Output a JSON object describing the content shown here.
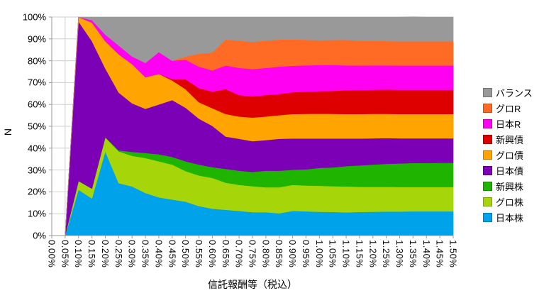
{
  "chart_data": {
    "type": "area",
    "subtype": "stacked-100",
    "title": "",
    "xlabel": "信託報酬等（税込）",
    "ylabel": "N",
    "ylim": [
      0,
      100
    ],
    "grid": true,
    "legend_position": "right",
    "x_tick_labels": [
      "0.00%",
      "0.05%",
      "0.10%",
      "0.15%",
      "0.20%",
      "0.25%",
      "0.30%",
      "0.35%",
      "0.40%",
      "0.45%",
      "0.50%",
      "0.55%",
      "0.60%",
      "0.65%",
      "0.70%",
      "0.75%",
      "0.80%",
      "0.85%",
      "0.90%",
      "0.95%",
      "1.00%",
      "1.05%",
      "1.10%",
      "1.15%",
      "1.20%",
      "1.25%",
      "1.30%",
      "1.35%",
      "1.40%",
      "1.45%",
      "1.50%"
    ],
    "y_tick_labels": [
      "0%",
      "10%",
      "20%",
      "30%",
      "40%",
      "50%",
      "60%",
      "70%",
      "80%",
      "90%",
      "100%"
    ],
    "series_stack_order": "bottom-to-top",
    "series": [
      {
        "name": "日本株",
        "color": "#00A3EA",
        "values": [
          0,
          0,
          21,
          17,
          38.5,
          24,
          22.5,
          19.5,
          17.5,
          16.5,
          15.5,
          13.5,
          12.3,
          11.8,
          11.3,
          10.7,
          10.7,
          10.2,
          11.3,
          11.1,
          10.9,
          10.8,
          10.6,
          10.8,
          10.9,
          11.0,
          11.0,
          11.1,
          11.1,
          11.1,
          11.1
        ]
      },
      {
        "name": "グロ株",
        "color": "#A6D609",
        "values": [
          0,
          0,
          4,
          4.5,
          6.5,
          14.5,
          14,
          16,
          16.5,
          16,
          14,
          14,
          14.1,
          12.4,
          11.9,
          11.9,
          11.4,
          11.9,
          11.9,
          11.8,
          11.9,
          11.8,
          11.9,
          11.5,
          11.4,
          11.3,
          11.2,
          11.1,
          11.1,
          11.1,
          11.1
        ]
      },
      {
        "name": "新興株",
        "color": "#1FB400",
        "values": [
          0,
          0,
          0,
          0,
          0,
          0.5,
          1.8,
          2.3,
          3.2,
          3.5,
          4.5,
          5,
          4.9,
          6.3,
          6.5,
          6.5,
          7.6,
          7.6,
          6.9,
          7.4,
          8.2,
          8.6,
          9.3,
          9.8,
          10.2,
          10.5,
          10.8,
          11.0,
          11.0,
          11.1,
          11.1
        ]
      },
      {
        "name": "日本債",
        "color": "#7C00B5",
        "values": [
          0,
          0,
          73,
          67.5,
          31.5,
          26.5,
          22.2,
          20.2,
          22.8,
          26,
          24.5,
          21,
          18.9,
          14.8,
          14.6,
          14.1,
          14,
          14.6,
          14.3,
          14.1,
          13.4,
          13.2,
          12.6,
          12.3,
          12.0,
          11.8,
          11.5,
          11.3,
          11.3,
          11.2,
          11.2
        ]
      },
      {
        "name": "グロ債",
        "color": "#FFA400",
        "values": [
          0,
          0,
          2,
          8.5,
          12.5,
          17.5,
          18,
          14.5,
          14,
          9,
          8.5,
          7.5,
          8.1,
          10.3,
          10.2,
          10.8,
          10.8,
          10.8,
          11.2,
          11.3,
          11.4,
          11.3,
          11.2,
          11.2,
          11.2,
          11.1,
          11.1,
          11.1,
          11.1,
          11.1,
          11.1
        ]
      },
      {
        "name": "新興債",
        "color": "#DE0000",
        "values": [
          0,
          0,
          0,
          0,
          0,
          0,
          0,
          0,
          0,
          0.5,
          4.5,
          6.5,
          7.6,
          11.4,
          9.8,
          9.7,
          9.8,
          9.7,
          10.0,
          10.2,
          10.3,
          10.5,
          10.9,
          11.0,
          11.0,
          11.1,
          11.1,
          11.1,
          11.1,
          11.1,
          11.1
        ]
      },
      {
        "name": "日本R",
        "color": "#FF00F2",
        "values": [
          0,
          0,
          0,
          1.1,
          3,
          4,
          3.5,
          6.5,
          10,
          8.5,
          9,
          9.8,
          9.7,
          10.8,
          12.4,
          12.5,
          12.4,
          12.5,
          12.1,
          12.0,
          11.9,
          11.8,
          11.4,
          11.2,
          11.2,
          11.1,
          11.1,
          11.1,
          11.1,
          11.1,
          11.1
        ]
      },
      {
        "name": "グロR",
        "color": "#FF6B24",
        "values": [
          0,
          0,
          0,
          0,
          0,
          0,
          0,
          0,
          0,
          0,
          1.5,
          5.9,
          8.2,
          11.9,
          12.5,
          12.4,
          12.5,
          12.4,
          12.1,
          11.7,
          11.4,
          11.5,
          11.7,
          11.3,
          11.2,
          11.1,
          11.1,
          11.1,
          11.1,
          11.1,
          11.1
        ]
      },
      {
        "name": "バランス",
        "color": "#999999",
        "values": [
          0,
          0,
          0,
          1.4,
          8,
          13,
          18,
          21,
          16,
          20,
          18,
          16.8,
          16.2,
          10.3,
          10.8,
          11.4,
          10.8,
          10.3,
          10.2,
          10.4,
          10.6,
          10.5,
          10.4,
          10.9,
          10.9,
          11.0,
          11.1,
          11.2,
          11.1,
          11.1,
          11.1
        ]
      }
    ],
    "colors": {
      "gridline": "#CFCFCF",
      "axis": "#9A9A9A",
      "text": "#000000",
      "background": "#FFFFFF"
    }
  }
}
